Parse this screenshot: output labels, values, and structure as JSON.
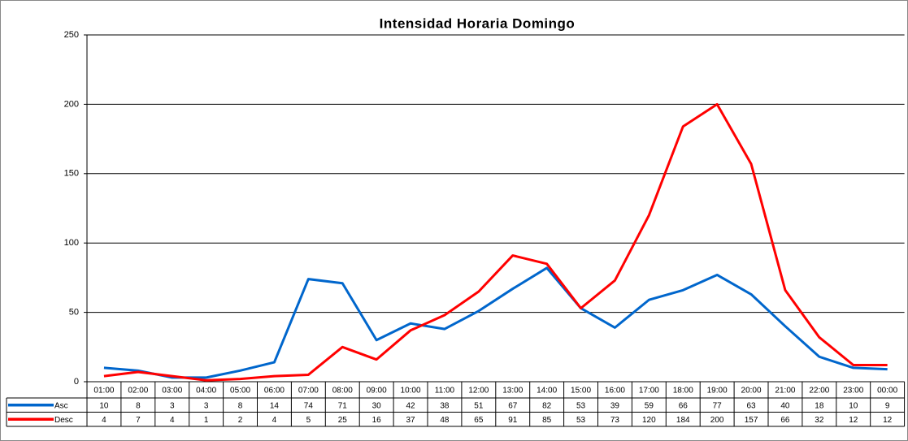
{
  "chart_data": {
    "type": "line",
    "title": "Intensidad Horaria Domingo",
    "categories": [
      "01:00",
      "02:00",
      "03:00",
      "04:00",
      "05:00",
      "06:00",
      "07:00",
      "08:00",
      "09:00",
      "10:00",
      "11:00",
      "12:00",
      "13:00",
      "14:00",
      "15:00",
      "16:00",
      "17:00",
      "18:00",
      "19:00",
      "20:00",
      "21:00",
      "22:00",
      "23:00",
      "00:00"
    ],
    "series": [
      {
        "name": "Asc",
        "color": "#0066cc",
        "values": [
          10,
          8,
          3,
          3,
          8,
          14,
          74,
          71,
          30,
          42,
          38,
          51,
          67,
          82,
          53,
          39,
          59,
          66,
          77,
          63,
          40,
          18,
          10,
          9
        ]
      },
      {
        "name": "Desc",
        "color": "#ff0000",
        "values": [
          4,
          7,
          4,
          1,
          2,
          4,
          5,
          25,
          16,
          37,
          48,
          65,
          91,
          85,
          53,
          73,
          120,
          184,
          200,
          157,
          66,
          32,
          12,
          12
        ]
      }
    ],
    "ylim": [
      0,
      250
    ],
    "yticks": [
      0,
      50,
      100,
      150,
      200,
      250
    ],
    "grid": true
  }
}
